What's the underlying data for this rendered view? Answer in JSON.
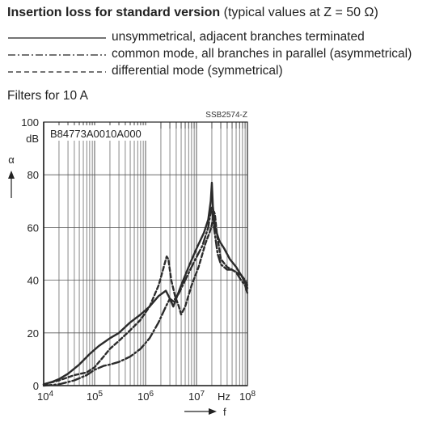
{
  "header": {
    "title_bold": "Insertion loss for standard version",
    "title_rest": " (typical values at Z = 50 Ω)"
  },
  "legend": [
    {
      "style": "solid",
      "label": "unsymmetrical, adjacent branches terminated"
    },
    {
      "style": "dashdot",
      "label": "common mode, all branches in parallel (asymmetrical)"
    },
    {
      "style": "dashed",
      "label": "differential mode (symmetrical)"
    }
  ],
  "subtitle": "Filters for 10 A",
  "chart_data": {
    "type": "line",
    "part_number": "B84773A0010A000",
    "figure_code": "SSB2574-Z",
    "xscale": "log",
    "xlim": [
      10000,
      100000000
    ],
    "ylim": [
      0,
      100
    ],
    "x_ticks": [
      {
        "value": 10000,
        "base": "10",
        "exp": "4"
      },
      {
        "value": 100000,
        "base": "10",
        "exp": "5"
      },
      {
        "value": 1000000,
        "base": "10",
        "exp": "6"
      },
      {
        "value": 10000000,
        "base": "10",
        "exp": "7"
      },
      {
        "value": 100000000,
        "base": "10",
        "exp": "8"
      }
    ],
    "x_unit": "Hz",
    "xlabel": "f",
    "y_ticks": [
      0,
      20,
      40,
      60,
      80,
      100
    ],
    "y_unit": "dB",
    "ylabel": "α",
    "grid": true,
    "series": [
      {
        "style": "solid",
        "points": [
          [
            10000,
            0.5
          ],
          [
            15000,
            1.5
          ],
          [
            20000,
            2.5
          ],
          [
            30000,
            4.5
          ],
          [
            50000,
            8
          ],
          [
            80000,
            12
          ],
          [
            120000,
            15
          ],
          [
            200000,
            18
          ],
          [
            300000,
            20
          ],
          [
            500000,
            24
          ],
          [
            800000,
            27
          ],
          [
            1200000,
            30
          ],
          [
            1800000,
            34
          ],
          [
            2500000,
            36
          ],
          [
            3000000,
            33
          ],
          [
            3500000,
            30
          ],
          [
            4000000,
            33
          ],
          [
            5000000,
            38
          ],
          [
            7000000,
            45
          ],
          [
            10000000,
            52
          ],
          [
            14000000,
            58
          ],
          [
            17000000,
            63
          ],
          [
            19000000,
            70
          ],
          [
            20000000,
            77
          ],
          [
            21000000,
            68
          ],
          [
            23000000,
            60
          ],
          [
            28000000,
            55
          ],
          [
            35000000,
            52
          ],
          [
            45000000,
            48
          ],
          [
            60000000,
            45
          ],
          [
            75000000,
            42
          ],
          [
            85000000,
            40
          ],
          [
            100000000,
            37
          ]
        ]
      },
      {
        "style": "dashdot",
        "points": [
          [
            10000,
            0
          ],
          [
            20000,
            0.5
          ],
          [
            40000,
            2
          ],
          [
            70000,
            4
          ],
          [
            100000,
            6
          ],
          [
            150000,
            7.5
          ],
          [
            200000,
            8
          ],
          [
            300000,
            9
          ],
          [
            500000,
            11
          ],
          [
            800000,
            14
          ],
          [
            1200000,
            18
          ],
          [
            1800000,
            24
          ],
          [
            2500000,
            30
          ],
          [
            3000000,
            33
          ],
          [
            3500000,
            32
          ],
          [
            4500000,
            35
          ],
          [
            6000000,
            40
          ],
          [
            9000000,
            47
          ],
          [
            13000000,
            53
          ],
          [
            17000000,
            60
          ],
          [
            19000000,
            66
          ],
          [
            20000000,
            68
          ],
          [
            22000000,
            60
          ],
          [
            26000000,
            50
          ],
          [
            30000000,
            46
          ],
          [
            40000000,
            44
          ],
          [
            50000000,
            44
          ],
          [
            60000000,
            43
          ],
          [
            75000000,
            40
          ],
          [
            90000000,
            38
          ],
          [
            100000000,
            35
          ]
        ]
      },
      {
        "style": "dashed",
        "points": [
          [
            10000,
            0.5
          ],
          [
            20000,
            2
          ],
          [
            40000,
            4
          ],
          [
            70000,
            5
          ],
          [
            100000,
            7
          ],
          [
            150000,
            11
          ],
          [
            200000,
            14
          ],
          [
            300000,
            17
          ],
          [
            500000,
            21
          ],
          [
            800000,
            25
          ],
          [
            1200000,
            30
          ],
          [
            1800000,
            38
          ],
          [
            2200000,
            44
          ],
          [
            2600000,
            49
          ],
          [
            2800000,
            48
          ],
          [
            3200000,
            40
          ],
          [
            3800000,
            34
          ],
          [
            4500000,
            30
          ],
          [
            5000000,
            27
          ],
          [
            6000000,
            30
          ],
          [
            8000000,
            38
          ],
          [
            11000000,
            45
          ],
          [
            15000000,
            54
          ],
          [
            18000000,
            58
          ],
          [
            20000000,
            61
          ],
          [
            22000000,
            66
          ],
          [
            23000000,
            65
          ],
          [
            25000000,
            58
          ],
          [
            30000000,
            48
          ],
          [
            40000000,
            45
          ],
          [
            50000000,
            44
          ],
          [
            60000000,
            43
          ],
          [
            75000000,
            42
          ],
          [
            90000000,
            40
          ],
          [
            100000000,
            38
          ]
        ]
      }
    ]
  }
}
